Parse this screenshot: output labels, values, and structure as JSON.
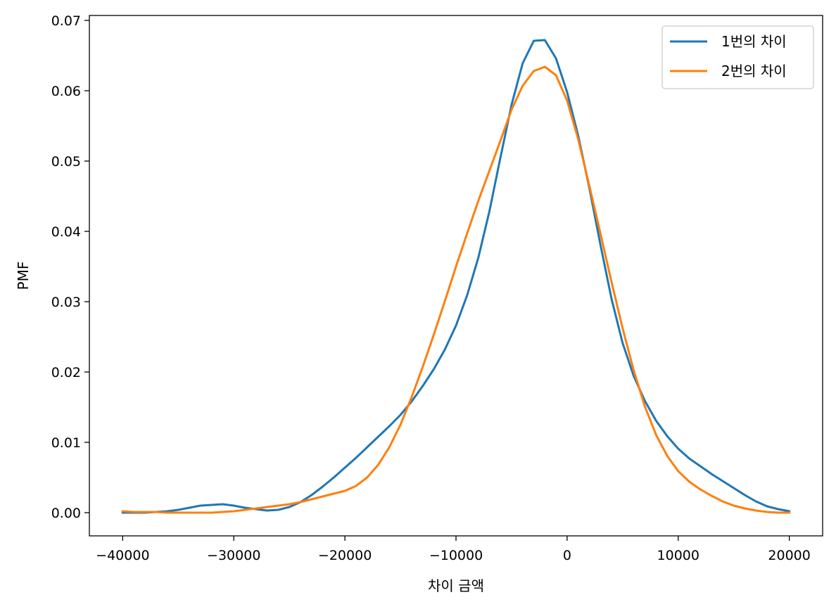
{
  "chart_data": {
    "type": "line",
    "xlabel": "차이 금액",
    "ylabel": "PMF",
    "xlim": [
      -43000,
      23000
    ],
    "ylim": [
      -0.0033,
      0.0707
    ],
    "xticks": [
      -40000,
      -30000,
      -20000,
      -10000,
      0,
      10000,
      20000
    ],
    "xtick_labels": [
      "−40000",
      "−30000",
      "−20000",
      "−10000",
      "0",
      "10000",
      "20000"
    ],
    "yticks": [
      0.0,
      0.01,
      0.02,
      0.03,
      0.04,
      0.05,
      0.06,
      0.07
    ],
    "ytick_labels": [
      "0.00",
      "0.01",
      "0.02",
      "0.03",
      "0.04",
      "0.05",
      "0.06",
      "0.07"
    ],
    "grid": false,
    "legend_position": "top-right",
    "series": [
      {
        "name": "1번의 차이",
        "color": "#1f77b4",
        "x": [
          -40000,
          -39000,
          -38000,
          -37000,
          -36000,
          -35000,
          -34000,
          -33000,
          -32000,
          -31000,
          -30000,
          -29000,
          -28000,
          -27000,
          -26000,
          -25000,
          -24000,
          -23000,
          -22000,
          -21000,
          -20000,
          -19000,
          -18000,
          -17000,
          -16000,
          -15000,
          -14000,
          -13000,
          -12000,
          -11000,
          -10000,
          -9000,
          -8000,
          -7000,
          -6000,
          -5000,
          -4000,
          -3000,
          -2000,
          -1000,
          0,
          1000,
          2000,
          3000,
          4000,
          5000,
          6000,
          7000,
          8000,
          9000,
          10000,
          11000,
          12000,
          13000,
          14000,
          15000,
          16000,
          17000,
          18000,
          19000,
          20000
        ],
        "values": [
          0.0,
          0.0,
          0.0,
          0.0001,
          0.0002,
          0.0004,
          0.0007,
          0.001,
          0.0011,
          0.0012,
          0.001,
          0.0007,
          0.0005,
          0.0003,
          0.0004,
          0.0008,
          0.0015,
          0.0025,
          0.0037,
          0.005,
          0.0064,
          0.0078,
          0.0093,
          0.0108,
          0.0123,
          0.0139,
          0.0158,
          0.018,
          0.0204,
          0.0232,
          0.0266,
          0.0309,
          0.0362,
          0.0428,
          0.0505,
          0.058,
          0.0639,
          0.0671,
          0.0672,
          0.0646,
          0.0598,
          0.0536,
          0.0462,
          0.0381,
          0.0304,
          0.0241,
          0.0194,
          0.0159,
          0.0131,
          0.0109,
          0.0091,
          0.0077,
          0.0066,
          0.0055,
          0.0045,
          0.0035,
          0.0025,
          0.0016,
          0.0009,
          0.0005,
          0.0002
        ]
      },
      {
        "name": "2번의 차이",
        "color": "#ff7f0e",
        "x": [
          -40000,
          -39000,
          -38000,
          -37000,
          -36000,
          -35000,
          -34000,
          -33000,
          -32000,
          -31000,
          -30000,
          -29000,
          -28000,
          -27000,
          -26000,
          -25000,
          -24000,
          -23000,
          -22000,
          -21000,
          -20000,
          -19000,
          -18000,
          -17000,
          -16000,
          -15000,
          -14000,
          -13000,
          -12000,
          -11000,
          -10000,
          -9000,
          -8000,
          -7000,
          -6000,
          -5000,
          -4000,
          -3000,
          -2000,
          -1000,
          0,
          1000,
          2000,
          3000,
          4000,
          5000,
          6000,
          7000,
          8000,
          9000,
          10000,
          11000,
          12000,
          13000,
          14000,
          15000,
          16000,
          17000,
          18000,
          19000,
          20000
        ],
        "values": [
          0.0002,
          0.0001,
          0.0001,
          0.0001,
          0.0,
          0.0,
          0.0,
          0.0,
          0.0,
          0.0001,
          0.0002,
          0.0004,
          0.0006,
          0.0008,
          0.001,
          0.0012,
          0.0015,
          0.0019,
          0.0023,
          0.0027,
          0.0031,
          0.0038,
          0.005,
          0.0068,
          0.0093,
          0.0125,
          0.0164,
          0.0207,
          0.0253,
          0.0301,
          0.035,
          0.0397,
          0.0443,
          0.0486,
          0.0529,
          0.0573,
          0.0607,
          0.0628,
          0.0634,
          0.0622,
          0.0586,
          0.0531,
          0.0465,
          0.0397,
          0.0328,
          0.0262,
          0.0202,
          0.0151,
          0.0111,
          0.0081,
          0.0059,
          0.0044,
          0.0033,
          0.0024,
          0.0016,
          0.001,
          0.0006,
          0.0003,
          0.0001,
          0.0,
          0.0
        ]
      }
    ]
  }
}
